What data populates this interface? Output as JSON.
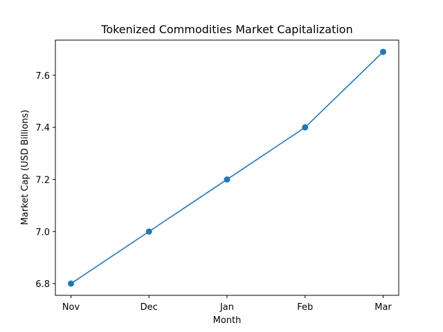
{
  "chart_data": {
    "type": "line",
    "title": "Tokenized Commodities Market Capitalization",
    "xlabel": "Month",
    "ylabel": "Market Cap (USD Billions)",
    "categories": [
      "Nov",
      "Dec",
      "Jan",
      "Feb",
      "Mar"
    ],
    "series": [
      {
        "values": [
          6.8,
          7.0,
          7.2,
          7.4,
          7.69
        ],
        "color": "#1f77b4",
        "marker": "circle"
      }
    ],
    "ylim": [
      6.755,
      7.735
    ],
    "yticks": [
      6.8,
      7.0,
      7.2,
      7.4,
      7.6
    ],
    "ytick_labels": [
      "6.8",
      "7.0",
      "7.2",
      "7.4",
      "7.6"
    ],
    "grid": false,
    "legend": "none"
  }
}
